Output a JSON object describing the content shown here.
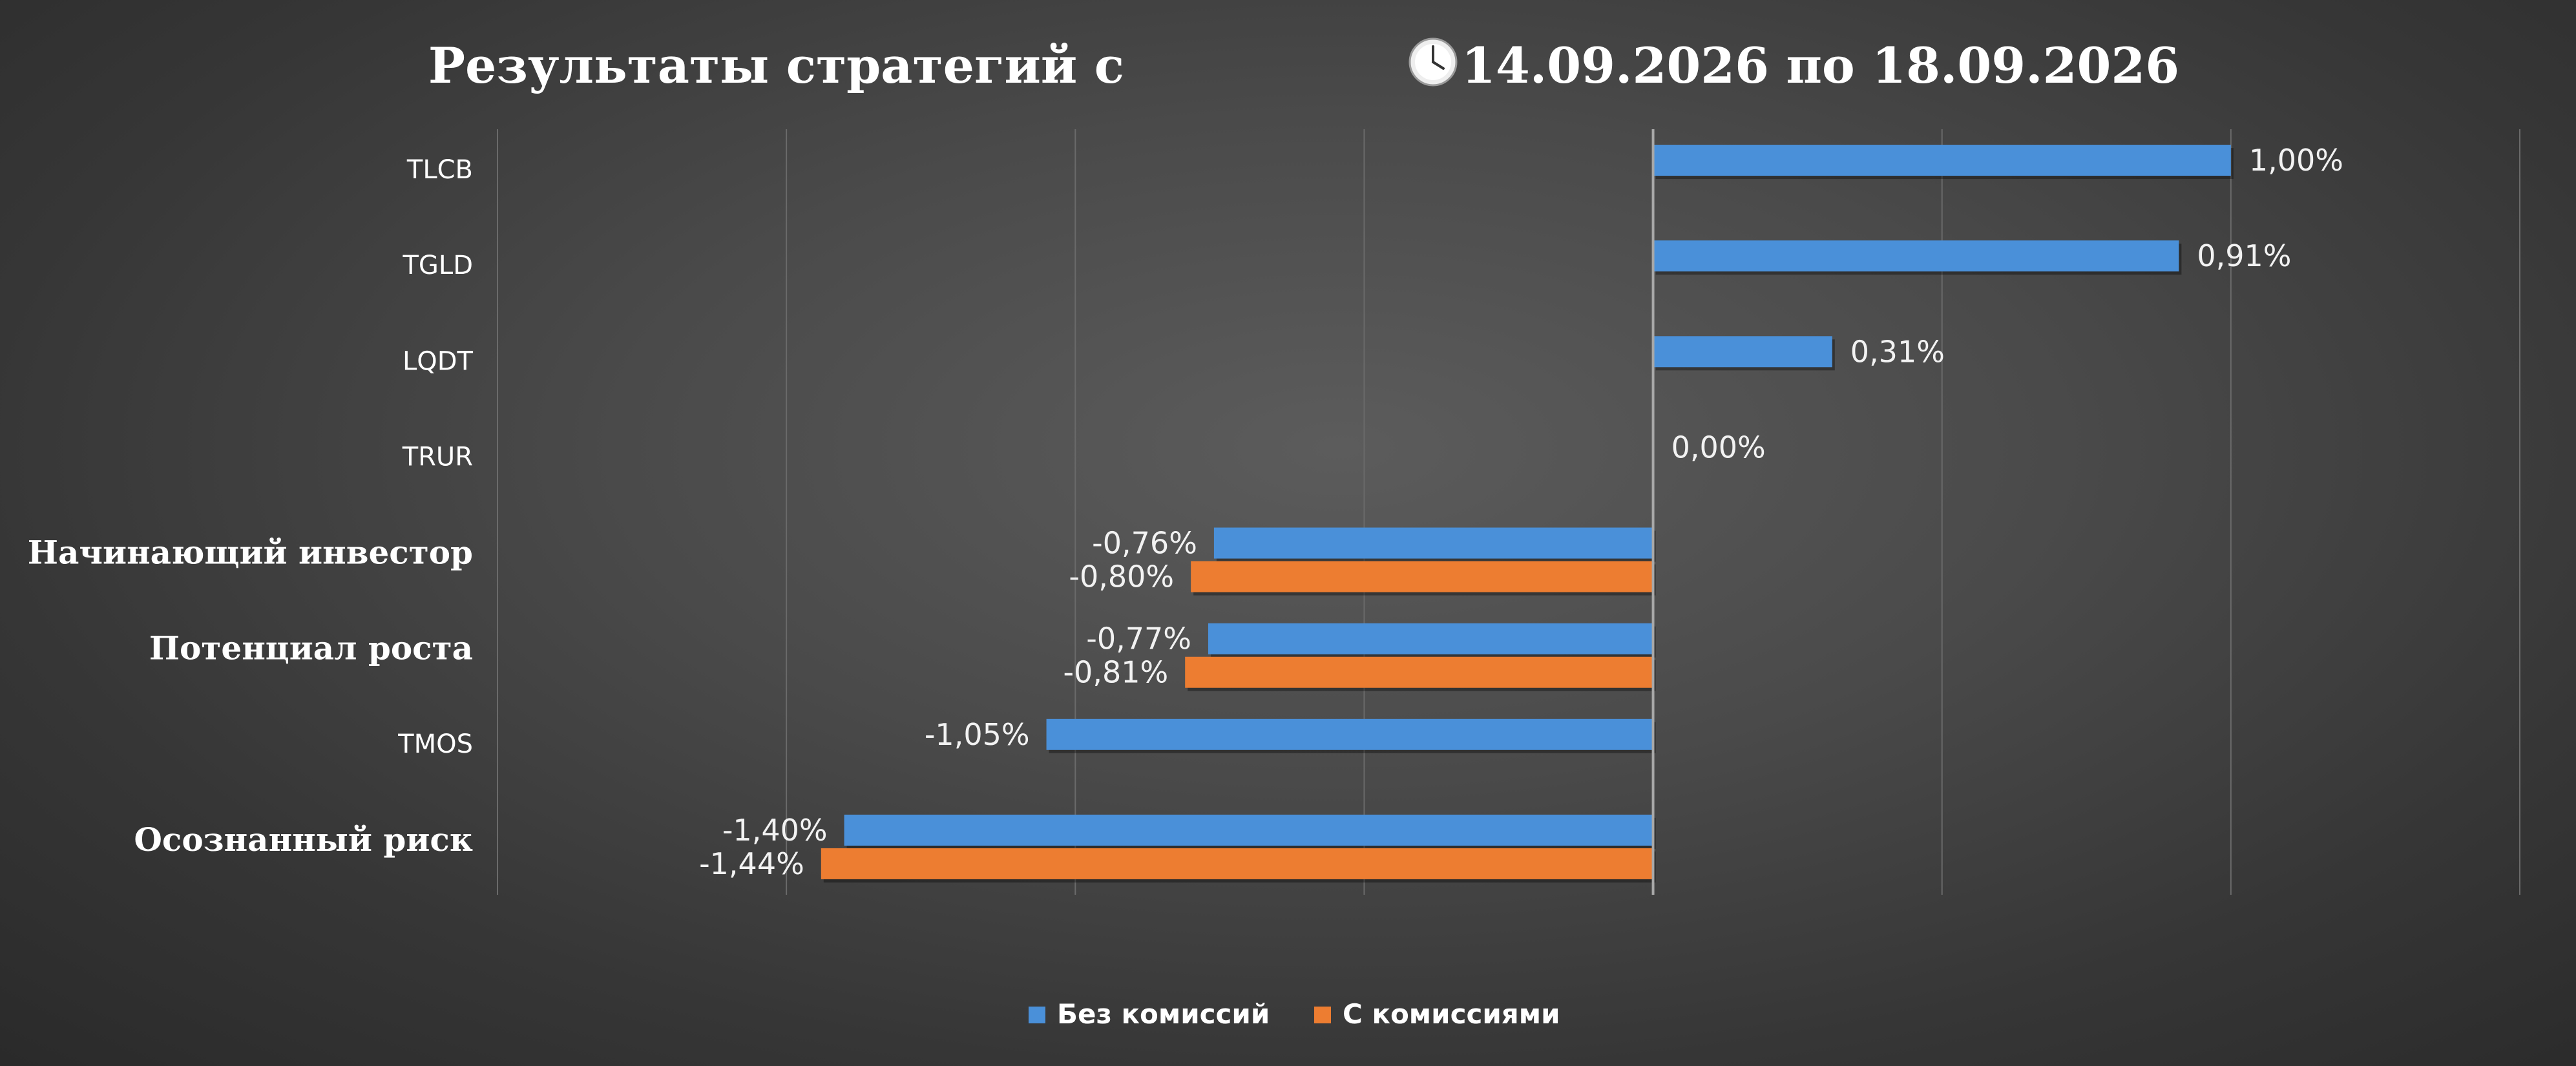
{
  "chart_data": {
    "type": "bar",
    "orientation": "horizontal",
    "title_prefix": "Результаты стратегий с",
    "title_suffix": "14.09.2026 по 18.09.2026",
    "title_icon": "clock-icon",
    "categories": [
      "TLCB",
      "TGLD",
      "LQDT",
      "TRUR",
      "Начинающий инвестор",
      "Потенциал роста",
      "TMOS",
      "Осознанный риск"
    ],
    "series": [
      {
        "name": "Без комиссий",
        "color": "#4a90d9",
        "values": [
          1.0,
          0.91,
          0.31,
          0.0,
          -0.76,
          -0.77,
          -1.05,
          -1.4
        ],
        "labels": [
          "1,00%",
          "0,91%",
          "0,31%",
          "0,00%",
          "-0,76%",
          "-0,77%",
          "-1,05%",
          "-1,40%"
        ]
      },
      {
        "name": "С комиссиями",
        "color": "#ed7d31",
        "values": [
          null,
          null,
          null,
          null,
          -0.8,
          -0.81,
          null,
          -1.44
        ],
        "labels": [
          null,
          null,
          null,
          null,
          "-0,80%",
          "-0,81%",
          null,
          "-1,44%"
        ]
      }
    ],
    "xlim": [
      -2.0,
      1.5
    ],
    "grid": true,
    "legend_position": "bottom"
  }
}
